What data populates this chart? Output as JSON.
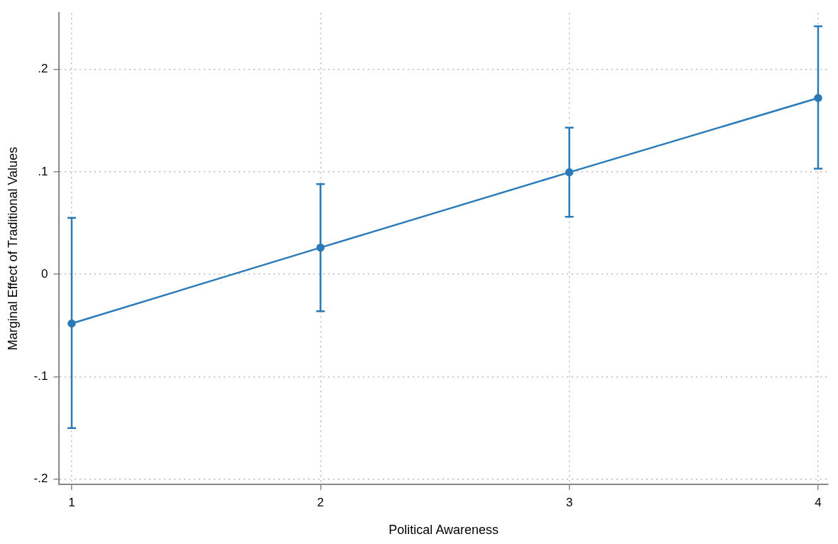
{
  "chart_data": {
    "type": "line",
    "xlabel": "Political Awareness",
    "ylabel": "Marginal Effect of Traditional Values",
    "x": [
      1,
      2,
      3,
      4
    ],
    "series": [
      {
        "color": "#2a7ab9",
        "values": [
          -0.048,
          0.026,
          0.0995,
          0.172
        ],
        "errors": [
          [
            -0.15,
            0.055
          ],
          [
            -0.036,
            0.088
          ],
          [
            0.056,
            0.143
          ],
          [
            0.103,
            0.242
          ]
        ]
      }
    ],
    "xlim": [
      0.95,
      4.04
    ],
    "xticks": [
      1,
      2,
      3,
      4
    ],
    "ylim": [
      -0.205,
      0.255
    ],
    "yticks": [
      {
        "value": -0.2,
        "label": "-.2"
      },
      {
        "value": -0.1,
        "label": "-.1"
      },
      0,
      {
        "value": 0.1,
        "label": ".1"
      },
      {
        "value": 0.2,
        "label": ".2"
      }
    ],
    "grid": true,
    "legend": false,
    "marker": "circle",
    "line_style": "solid"
  }
}
